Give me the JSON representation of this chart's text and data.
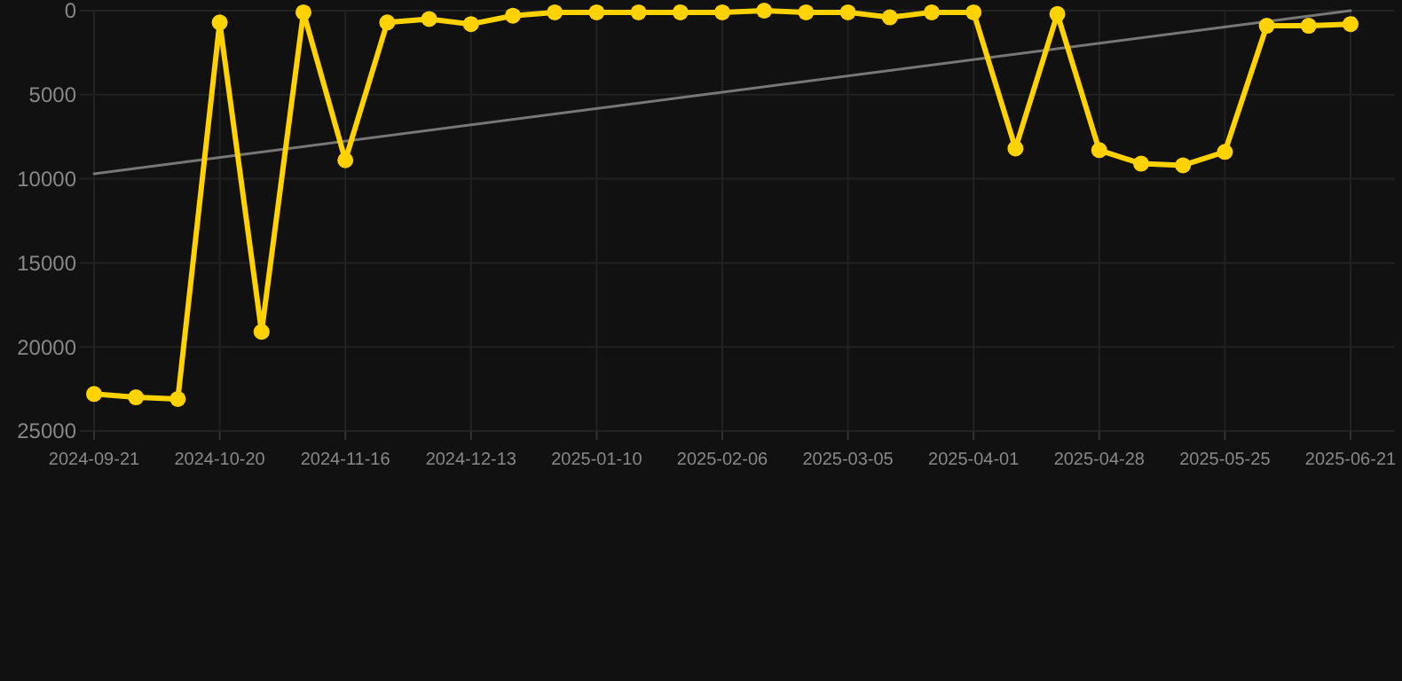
{
  "chart_data": {
    "type": "line",
    "categories": [
      "2024-09-21",
      null,
      null,
      "2024-10-20",
      null,
      null,
      "2024-11-16",
      null,
      null,
      "2024-12-13",
      null,
      null,
      "2025-01-10",
      null,
      null,
      "2025-02-06",
      null,
      null,
      "2025-03-05",
      null,
      null,
      "2025-04-01",
      null,
      null,
      "2025-04-28",
      null,
      null,
      "2025-05-25",
      null,
      null,
      "2025-06-21"
    ],
    "series": [
      {
        "color": "#ffd200",
        "marker": "circle",
        "values": [
          22800,
          23000,
          23100,
          700,
          19100,
          100,
          8900,
          700,
          500,
          800,
          300,
          100,
          100,
          100,
          100,
          100,
          0,
          100,
          100,
          400,
          100,
          100,
          8200,
          200,
          8300,
          9100,
          9200,
          8400,
          900,
          900,
          800
        ]
      },
      {
        "type": "line",
        "color": "#777777",
        "marker": "none",
        "values": [
          9700,
          null,
          null,
          null,
          null,
          null,
          null,
          null,
          null,
          null,
          null,
          null,
          null,
          null,
          null,
          null,
          null,
          null,
          null,
          null,
          null,
          null,
          null,
          null,
          null,
          null,
          null,
          null,
          null,
          null,
          0
        ]
      }
    ],
    "ylim": [
      25000,
      0
    ],
    "yticks": [
      0,
      5000,
      10000,
      15000,
      20000,
      25000
    ],
    "grid": true
  }
}
